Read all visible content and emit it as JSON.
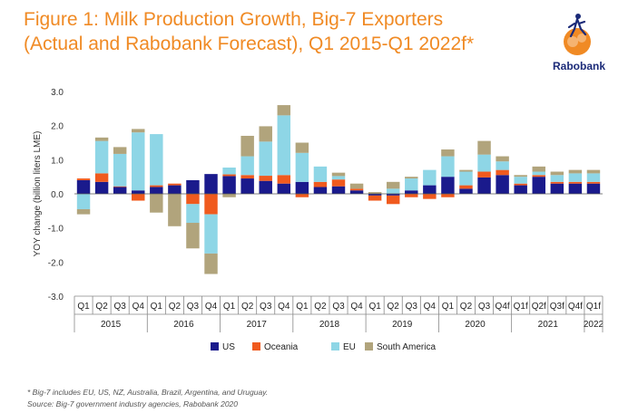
{
  "title": {
    "line1": "Figure 1: Milk Production Growth, Big-7 Exporters",
    "line2": "(Actual and Rabobank Forecast), Q1 2015-Q1 2022f*"
  },
  "logo": {
    "text": "Rabobank"
  },
  "colors": {
    "US": "#1a1a8c",
    "Oceania": "#f05a1e",
    "EU": "#8ed6e6",
    "South America": "#b1a47c"
  },
  "chart_data": {
    "type": "bar",
    "stacked": true,
    "ylabel": "YOY change (billion liters LME)",
    "xlabel": "",
    "ylim": [
      -3.0,
      3.0
    ],
    "yticks": [
      3.0,
      2.0,
      1.0,
      0.0,
      -1.0,
      -2.0,
      -3.0
    ],
    "ytick_labels": [
      "3.0",
      "2.0",
      "1.0",
      "0.0",
      "-1.0",
      "-2.0",
      "-3.0"
    ],
    "categories": [
      "Q1",
      "Q2",
      "Q3",
      "Q4",
      "Q1",
      "Q2",
      "Q3",
      "Q4",
      "Q1",
      "Q2",
      "Q3",
      "Q4",
      "Q1",
      "Q2",
      "Q3",
      "Q4",
      "Q1",
      "Q2",
      "Q3",
      "Q4",
      "Q1",
      "Q2",
      "Q3",
      "Q4f",
      "Q1f",
      "Q2f",
      "Q3f",
      "Q4f",
      "Q1f"
    ],
    "years": [
      {
        "label": "2015",
        "start": 0,
        "count": 4
      },
      {
        "label": "2016",
        "start": 4,
        "count": 4
      },
      {
        "label": "2017",
        "start": 8,
        "count": 4
      },
      {
        "label": "2018",
        "start": 12,
        "count": 4
      },
      {
        "label": "2019",
        "start": 16,
        "count": 4
      },
      {
        "label": "2020",
        "start": 20,
        "count": 4
      },
      {
        "label": "2021",
        "start": 24,
        "count": 4
      },
      {
        "label": "2022",
        "start": 28,
        "count": 1
      }
    ],
    "series": [
      {
        "name": "US",
        "values": [
          0.4,
          0.35,
          0.2,
          0.1,
          0.2,
          0.25,
          0.4,
          0.58,
          0.52,
          0.45,
          0.38,
          0.3,
          0.35,
          0.2,
          0.22,
          0.1,
          -0.05,
          -0.05,
          0.1,
          0.25,
          0.5,
          0.15,
          0.48,
          0.55,
          0.25,
          0.5,
          0.3,
          0.3,
          0.3
        ]
      },
      {
        "name": "Oceania",
        "values": [
          0.05,
          0.25,
          0.02,
          -0.2,
          0.05,
          0.05,
          -0.3,
          -0.6,
          0.05,
          0.1,
          0.15,
          0.25,
          -0.1,
          0.15,
          0.2,
          0.05,
          -0.15,
          -0.25,
          -0.1,
          -0.15,
          -0.1,
          0.1,
          0.17,
          0.15,
          0.05,
          0.05,
          0.05,
          0.05,
          0.05
        ]
      },
      {
        "name": "EU",
        "values": [
          -0.45,
          0.95,
          0.95,
          1.7,
          1.5,
          0.0,
          -0.55,
          -1.15,
          0.2,
          0.55,
          1.0,
          1.75,
          0.85,
          0.45,
          0.1,
          0.0,
          0.0,
          0.15,
          0.35,
          0.45,
          0.6,
          0.4,
          0.5,
          0.25,
          0.2,
          0.1,
          0.2,
          0.25,
          0.25
        ]
      },
      {
        "name": "South America",
        "values": [
          -0.15,
          0.1,
          0.2,
          0.1,
          -0.55,
          -0.95,
          -0.75,
          -0.6,
          -0.1,
          0.6,
          0.45,
          0.3,
          0.3,
          0.0,
          0.1,
          0.15,
          0.05,
          0.2,
          0.05,
          0.0,
          0.2,
          0.05,
          0.4,
          0.15,
          0.05,
          0.15,
          0.1,
          0.1,
          0.1
        ]
      }
    ],
    "legend_position": "bottom",
    "grid": false
  },
  "footnotes": [
    "* Big-7 includes EU, US, NZ, Australia, Brazil, Argentina, and Uruguay.",
    "Source: Big-7 government industry agencies, Rabobank 2020"
  ]
}
